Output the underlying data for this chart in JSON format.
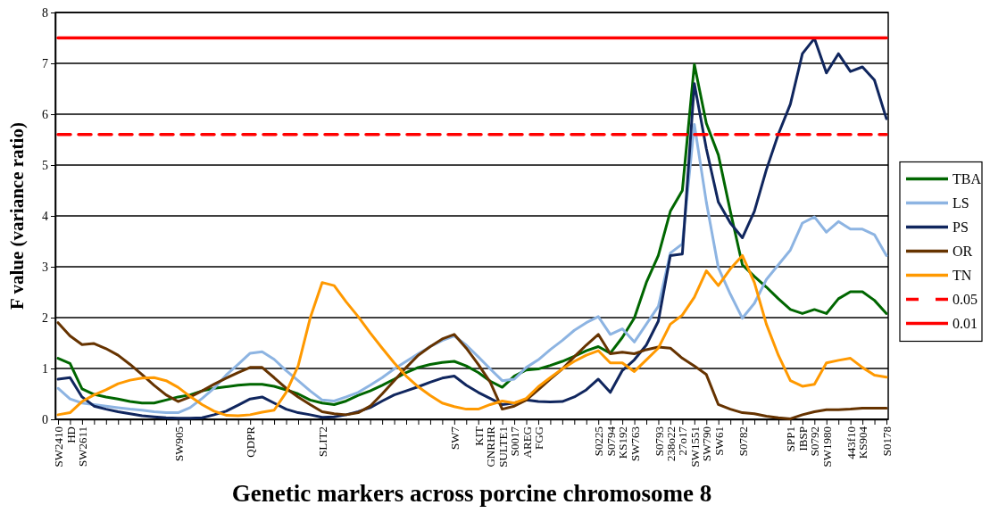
{
  "chart_data": {
    "type": "line",
    "xlabel": "Genetic markers across porcine chromosome 8",
    "ylabel": "F value (variance ratio)",
    "categories": [
      "SW2410",
      "HD",
      "SW2611",
      null,
      null,
      null,
      null,
      null,
      null,
      null,
      "SW905",
      null,
      null,
      null,
      null,
      null,
      "QDPR",
      null,
      null,
      null,
      null,
      null,
      "SLIT2",
      null,
      null,
      null,
      null,
      null,
      null,
      null,
      null,
      null,
      null,
      "SW7",
      null,
      "KIT",
      "GNRHR",
      "SULTE1",
      "S0017",
      "AREG",
      "FGG",
      null,
      null,
      null,
      null,
      "S0225",
      "S0794",
      "KS192",
      "SW763",
      null,
      "S0793",
      "238o22",
      "27o17",
      "SW1551",
      "SW790",
      "SW61",
      null,
      "S0782",
      null,
      null,
      null,
      "SPP1",
      "IBSP",
      "S0792",
      "SW1980",
      null,
      "443f10",
      "KS904",
      null,
      "S0178"
    ],
    "series": [
      {
        "name": "TBA",
        "color": "#006600",
        "values": [
          1.2,
          1.1,
          0.6,
          0.49,
          0.44,
          0.4,
          0.35,
          0.32,
          0.32,
          0.38,
          0.44,
          0.48,
          0.56,
          0.61,
          0.64,
          0.67,
          0.69,
          0.69,
          0.65,
          0.58,
          0.5,
          0.38,
          0.32,
          0.29,
          0.36,
          0.47,
          0.56,
          0.67,
          0.79,
          0.92,
          1.02,
          1.08,
          1.12,
          1.14,
          1.05,
          0.92,
          0.75,
          0.63,
          0.85,
          0.97,
          0.99,
          1.06,
          1.14,
          1.24,
          1.35,
          1.43,
          1.3,
          1.61,
          1.99,
          2.69,
          3.22,
          4.09,
          4.5,
          6.98,
          5.82,
          5.2,
          4.09,
          3.04,
          2.81,
          2.6,
          2.37,
          2.16,
          2.08,
          2.16,
          2.08,
          2.37,
          2.51,
          2.51,
          2.34,
          2.08
        ]
      },
      {
        "name": "LS",
        "color": "#8db4e2",
        "values": [
          0.61,
          0.4,
          0.32,
          0.29,
          0.26,
          0.23,
          0.2,
          0.18,
          0.15,
          0.13,
          0.13,
          0.23,
          0.41,
          0.61,
          0.87,
          1.08,
          1.3,
          1.33,
          1.18,
          0.96,
          0.76,
          0.56,
          0.38,
          0.36,
          0.44,
          0.53,
          0.67,
          0.82,
          0.99,
          1.14,
          1.29,
          1.43,
          1.55,
          1.64,
          1.46,
          1.23,
          0.99,
          0.76,
          0.79,
          1.02,
          1.17,
          1.37,
          1.55,
          1.75,
          1.9,
          2.02,
          1.67,
          1.78,
          1.52,
          1.87,
          2.22,
          3.27,
          3.45,
          5.8,
          4.27,
          2.98,
          2.46,
          1.99,
          2.28,
          2.75,
          3.04,
          3.33,
          3.86,
          3.98,
          3.68,
          3.89,
          3.74,
          3.74,
          3.63,
          3.22
        ]
      },
      {
        "name": "PS",
        "color": "#10265e",
        "values": [
          0.79,
          0.82,
          0.44,
          0.26,
          0.2,
          0.15,
          0.11,
          0.07,
          0.05,
          0.03,
          0.02,
          0.02,
          0.03,
          0.09,
          0.16,
          0.28,
          0.4,
          0.44,
          0.32,
          0.2,
          0.13,
          0.09,
          0.04,
          0.05,
          0.09,
          0.15,
          0.23,
          0.36,
          0.48,
          0.56,
          0.64,
          0.73,
          0.81,
          0.85,
          0.67,
          0.53,
          0.41,
          0.29,
          0.32,
          0.38,
          0.35,
          0.34,
          0.35,
          0.44,
          0.58,
          0.79,
          0.53,
          0.96,
          1.17,
          1.46,
          1.93,
          3.22,
          3.25,
          6.6,
          5.32,
          4.27,
          3.86,
          3.57,
          4.09,
          4.91,
          5.61,
          6.2,
          7.19,
          7.49,
          6.81,
          7.19,
          6.84,
          6.93,
          6.67,
          5.91
        ]
      },
      {
        "name": "OR",
        "color": "#663300",
        "values": [
          1.9,
          1.64,
          1.47,
          1.49,
          1.39,
          1.26,
          1.08,
          0.88,
          0.67,
          0.48,
          0.35,
          0.44,
          0.56,
          0.69,
          0.81,
          0.92,
          1.02,
          1.02,
          0.82,
          0.61,
          0.44,
          0.29,
          0.15,
          0.11,
          0.09,
          0.13,
          0.26,
          0.5,
          0.76,
          1.02,
          1.26,
          1.43,
          1.58,
          1.67,
          1.4,
          1.08,
          0.73,
          0.2,
          0.26,
          0.38,
          0.58,
          0.79,
          0.99,
          1.23,
          1.46,
          1.67,
          1.29,
          1.32,
          1.29,
          1.37,
          1.42,
          1.4,
          1.2,
          1.05,
          0.88,
          0.29,
          0.2,
          0.13,
          0.11,
          0.06,
          0.03,
          0.01,
          0.09,
          0.15,
          0.19,
          0.19,
          0.2,
          0.22,
          0.22,
          0.22
        ]
      },
      {
        "name": "TN",
        "color": "#ff9900",
        "values": [
          0.09,
          0.13,
          0.35,
          0.48,
          0.58,
          0.7,
          0.77,
          0.81,
          0.82,
          0.76,
          0.63,
          0.45,
          0.29,
          0.16,
          0.08,
          0.07,
          0.09,
          0.14,
          0.18,
          0.53,
          1.05,
          1.99,
          2.69,
          2.63,
          2.31,
          2.02,
          1.7,
          1.4,
          1.11,
          0.85,
          0.64,
          0.47,
          0.32,
          0.25,
          0.2,
          0.2,
          0.29,
          0.36,
          0.32,
          0.41,
          0.64,
          0.82,
          0.99,
          1.14,
          1.26,
          1.35,
          1.11,
          1.11,
          0.94,
          1.17,
          1.4,
          1.87,
          2.05,
          2.4,
          2.92,
          2.63,
          2.96,
          3.22,
          2.69,
          1.87,
          1.26,
          0.76,
          0.65,
          0.69,
          1.11,
          1.16,
          1.2,
          1.02,
          0.87,
          0.83
        ]
      },
      {
        "name": "0.05",
        "color": "#ff0000",
        "line_style": "dashed",
        "values": [
          5.6,
          5.6,
          5.6,
          5.6,
          5.6,
          5.6,
          5.6,
          5.6,
          5.6,
          5.6,
          5.6,
          5.6,
          5.6,
          5.6,
          5.6,
          5.6,
          5.6,
          5.6,
          5.6,
          5.6,
          5.6,
          5.6,
          5.6,
          5.6,
          5.6,
          5.6,
          5.6,
          5.6,
          5.6,
          5.6,
          5.6,
          5.6,
          5.6,
          5.6,
          5.6,
          5.6,
          5.6,
          5.6,
          5.6,
          5.6,
          5.6,
          5.6,
          5.6,
          5.6,
          5.6,
          5.6,
          5.6,
          5.6,
          5.6,
          5.6,
          5.6,
          5.6,
          5.6,
          5.6,
          5.6,
          5.6,
          5.6,
          5.6,
          5.6,
          5.6,
          5.6,
          5.6,
          5.6,
          5.6,
          5.6,
          5.6,
          5.6,
          5.6,
          5.6,
          5.6
        ]
      },
      {
        "name": "0.01",
        "color": "#ff0000",
        "line_style": "solid",
        "values": [
          7.5,
          7.5,
          7.5,
          7.5,
          7.5,
          7.5,
          7.5,
          7.5,
          7.5,
          7.5,
          7.5,
          7.5,
          7.5,
          7.5,
          7.5,
          7.5,
          7.5,
          7.5,
          7.5,
          7.5,
          7.5,
          7.5,
          7.5,
          7.5,
          7.5,
          7.5,
          7.5,
          7.5,
          7.5,
          7.5,
          7.5,
          7.5,
          7.5,
          7.5,
          7.5,
          7.5,
          7.5,
          7.5,
          7.5,
          7.5,
          7.5,
          7.5,
          7.5,
          7.5,
          7.5,
          7.5,
          7.5,
          7.5,
          7.5,
          7.5,
          7.5,
          7.5,
          7.5,
          7.5,
          7.5,
          7.5,
          7.5,
          7.5,
          7.5,
          7.5,
          7.5,
          7.5,
          7.5,
          7.5,
          7.5,
          7.5,
          7.5,
          7.5,
          7.5,
          7.5
        ]
      }
    ],
    "ylim": [
      0,
      8
    ],
    "yticks": [
      0,
      1,
      2,
      3,
      4,
      5,
      6,
      7,
      8
    ],
    "grid": "y",
    "legend": "right",
    "line_style": "solid",
    "marker": "none"
  }
}
